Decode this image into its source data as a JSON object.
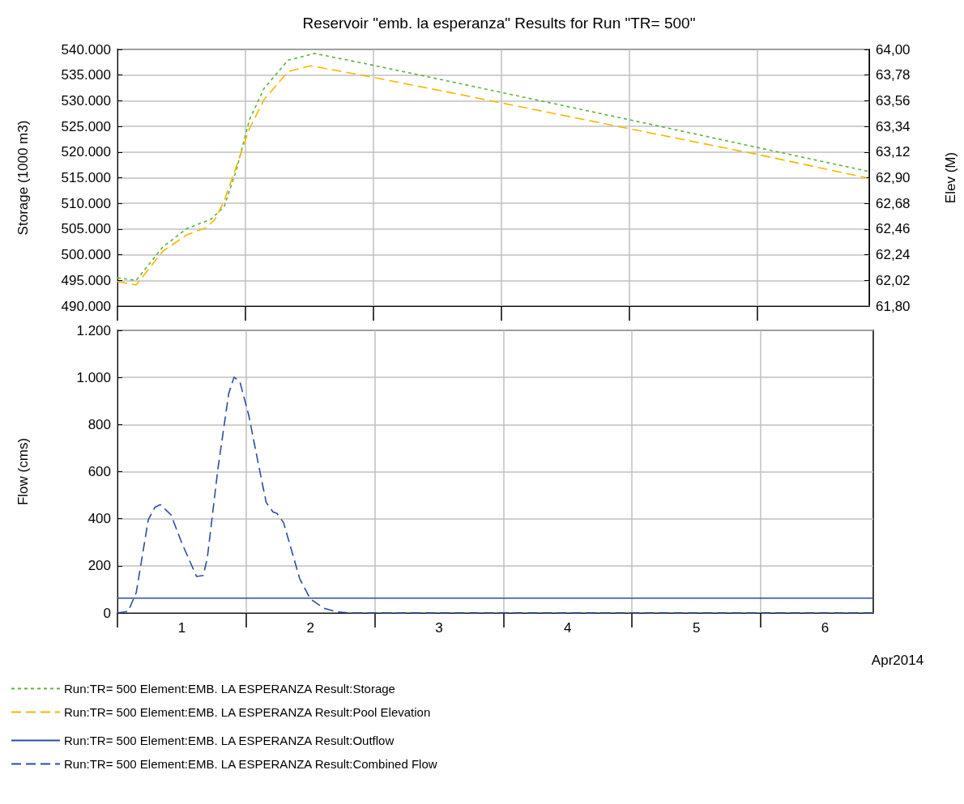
{
  "chart_data": [
    {
      "type": "line",
      "title": "Reservoir \"emb. la esperanza\" Results for Run \"TR= 500\"",
      "ylabel": "Storage (1000 m3)",
      "y2label": "Elev (M)",
      "grid": true,
      "legend": "bottom",
      "tick_labels": "y",
      "xlim": [
        "2014-04-01T00:00",
        "2014-04-06T21:00"
      ],
      "xticks": [
        {
          "value": "2014-04-01T00:00",
          "label": null
        },
        {
          "value": "2014-04-02T00:00",
          "label": null
        },
        {
          "value": "2014-04-03T00:00",
          "label": null
        },
        {
          "value": "2014-04-04T00:00",
          "label": null
        },
        {
          "value": "2014-04-05T00:00",
          "label": null
        },
        {
          "value": "2014-04-06T00:00",
          "label": null
        }
      ],
      "ylim": [
        490000,
        540000
      ],
      "yticks": [
        {
          "value": 490000,
          "label": "490.000"
        },
        {
          "value": 495000,
          "label": "495.000"
        },
        {
          "value": 500000,
          "label": "500.000"
        },
        {
          "value": 505000,
          "label": "505.000"
        },
        {
          "value": 510000,
          "label": "510.000"
        },
        {
          "value": 515000,
          "label": "515.000"
        },
        {
          "value": 520000,
          "label": "520.000"
        },
        {
          "value": 525000,
          "label": "525.000"
        },
        {
          "value": 530000,
          "label": "530.000"
        },
        {
          "value": 535000,
          "label": "535.000"
        },
        {
          "value": 540000,
          "label": "540.000"
        }
      ],
      "y2lim": [
        61.8,
        64.0
      ],
      "y2ticks": [
        {
          "value": 61.8,
          "label": "61,80"
        },
        {
          "value": 62.02,
          "label": "62,02"
        },
        {
          "value": 62.24,
          "label": "62,24"
        },
        {
          "value": 62.46,
          "label": "62,46"
        },
        {
          "value": 62.68,
          "label": "62,68"
        },
        {
          "value": 62.9,
          "label": "62,90"
        },
        {
          "value": 63.12,
          "label": "63,12"
        },
        {
          "value": 63.34,
          "label": "63,34"
        },
        {
          "value": 63.56,
          "label": "63,56"
        },
        {
          "value": 63.78,
          "label": "63,78"
        },
        {
          "value": 64.0,
          "label": "64,00"
        }
      ],
      "series": [
        {
          "name": "Run:TR= 500 Element:EMB. LA ESPERANZA Result:Storage",
          "color": "#5ab43c",
          "line_style": "dotted",
          "axis": "y",
          "x": [
            "2014-04-01T00:00",
            "2014-04-01T03:30",
            "2014-04-01T08:30",
            "2014-04-01T13:00",
            "2014-04-01T17:30",
            "2014-04-01T20:00",
            "2014-04-01T22:20",
            "2014-04-02T00:45",
            "2014-04-02T03:30",
            "2014-04-02T08:00",
            "2014-04-02T13:00",
            "2014-04-03T00:00",
            "2014-04-03T15:30",
            "2014-04-05T00:00",
            "2014-04-06T00:00",
            "2014-04-06T21:00"
          ],
          "values": [
            495500,
            495000,
            501500,
            505100,
            506900,
            509300,
            516600,
            526300,
            532400,
            537900,
            539200,
            536900,
            533500,
            526300,
            520900,
            516200
          ]
        },
        {
          "name": "Run:TR= 500 Element:EMB. LA ESPERANZA Result:Pool Elevation",
          "color": "#f5b800",
          "line_style": "dashed",
          "axis": "y2",
          "x": [
            "2014-04-01T00:00",
            "2014-04-01T03:30",
            "2014-04-01T08:30",
            "2014-04-01T13:00",
            "2014-04-01T16:30",
            "2014-04-01T18:15",
            "2014-04-01T20:00",
            "2014-04-01T22:20",
            "2014-04-02T00:45",
            "2014-04-02T03:30",
            "2014-04-02T08:00",
            "2014-04-02T12:15",
            "2014-04-03T00:00",
            "2014-04-03T15:30",
            "2014-04-05T00:00",
            "2014-04-06T00:00",
            "2014-04-06T20:30"
          ],
          "values": [
            62.01,
            61.98,
            62.27,
            62.41,
            62.47,
            62.54,
            62.7,
            63.0,
            63.32,
            63.57,
            63.81,
            63.86,
            63.76,
            63.62,
            63.32,
            63.1,
            62.9
          ]
        }
      ]
    },
    {
      "type": "line",
      "ylabel": "Flow (cms)",
      "xlabel": "Apr2014",
      "grid": true,
      "legend": "bottom",
      "xlim": [
        "2014-04-01T00:00",
        "2014-04-06T21:00"
      ],
      "xticks": [
        {
          "value": "2014-04-01T00:00",
          "label": null
        },
        {
          "value": "2014-04-01T12:00",
          "label": "1"
        },
        {
          "value": "2014-04-02T00:00",
          "label": null
        },
        {
          "value": "2014-04-02T12:00",
          "label": "2"
        },
        {
          "value": "2014-04-03T00:00",
          "label": null
        },
        {
          "value": "2014-04-03T12:00",
          "label": "3"
        },
        {
          "value": "2014-04-04T00:00",
          "label": null
        },
        {
          "value": "2014-04-04T12:00",
          "label": "4"
        },
        {
          "value": "2014-04-05T00:00",
          "label": null
        },
        {
          "value": "2014-04-05T12:00",
          "label": "5"
        },
        {
          "value": "2014-04-06T00:00",
          "label": null
        },
        {
          "value": "2014-04-06T12:00",
          "label": "6"
        }
      ],
      "ylim": [
        0,
        1200
      ],
      "yticks": [
        0,
        200,
        400,
        600,
        800,
        {
          "value": 1000,
          "label": "1.000"
        },
        {
          "value": 1200,
          "label": "1.200"
        }
      ],
      "series": [
        {
          "name": "Run:TR= 500 Element:EMB. LA ESPERANZA Result:Outflow",
          "color": "#2a4ea0",
          "line_style": "solid",
          "x": [
            "2014-04-01T00:00",
            "2014-04-06T21:00"
          ],
          "values": [
            63,
            63
          ]
        },
        {
          "name": "Run:TR= 500 Element:EMB. LA ESPERANZA Result:Combined Flow",
          "color": "#2a4ea0",
          "line_style": "dashed",
          "x": [
            "2014-04-01T00:00",
            "2014-04-01T02:00",
            "2014-04-01T03:30",
            "2014-04-01T05:45",
            "2014-04-01T07:00",
            "2014-04-01T08:00",
            "2014-04-01T10:00",
            "2014-04-01T12:00",
            "2014-04-01T14:45",
            "2014-04-01T16:00",
            "2014-04-01T16:45",
            "2014-04-01T18:45",
            "2014-04-01T20:45",
            "2014-04-01T21:45",
            "2014-04-01T22:50",
            "2014-04-02T00:30",
            "2014-04-02T02:20",
            "2014-04-02T03:45",
            "2014-04-02T05:00",
            "2014-04-02T05:45",
            "2014-04-02T07:00",
            "2014-04-02T10:00",
            "2014-04-02T12:00",
            "2014-04-02T14:30",
            "2014-04-02T17:00",
            "2014-04-02T19:30",
            "2014-04-06T21:00"
          ],
          "values": [
            0,
            7,
            86,
            396,
            449,
            460,
            416,
            297,
            155,
            159,
            231,
            614,
            931,
            1001,
            982,
            839,
            627,
            469,
            429,
            423,
            383,
            145,
            59,
            20,
            4,
            0,
            0
          ]
        }
      ]
    }
  ]
}
